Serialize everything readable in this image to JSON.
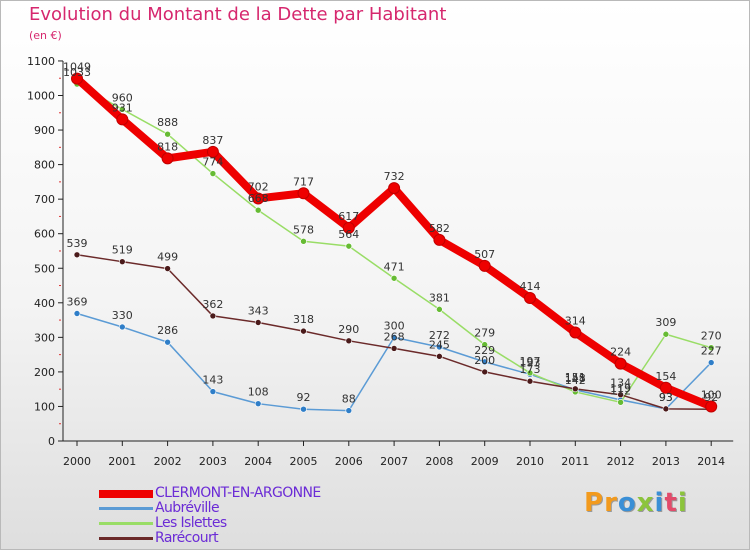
{
  "chart_data": {
    "type": "line",
    "title": "Evolution du Montant de la Dette par Habitant",
    "unit_label": "(en €)",
    "x": [
      "2000",
      "2001",
      "2002",
      "2003",
      "2004",
      "2005",
      "2006",
      "2007",
      "2008",
      "2009",
      "2010",
      "2011",
      "2012",
      "2013",
      "2014"
    ],
    "ylim": [
      0,
      1100
    ],
    "yticks": [
      0,
      100,
      200,
      300,
      400,
      500,
      600,
      700,
      800,
      900,
      1000,
      1100
    ],
    "grid": false,
    "legend_position": "bottom-left",
    "series": [
      {
        "name": "CLERMONT-EN-ARGONNE",
        "color": "#ee0000",
        "dot_color": "#ee0000",
        "values": [
          1049,
          931,
          818,
          837,
          702,
          717,
          617,
          732,
          582,
          507,
          414,
          314,
          224,
          154,
          100
        ]
      },
      {
        "name": "Aubréville",
        "color": "#5b9bd5",
        "dot_color": "#2f7ec8",
        "values": [
          369,
          330,
          286,
          143,
          108,
          92,
          88,
          300,
          272,
          229,
          193,
          148,
          119,
          93,
          227
        ]
      },
      {
        "name": "Les Islettes",
        "color": "#99dd66",
        "dot_color": "#66bb33",
        "values": [
          1033,
          960,
          888,
          774,
          668,
          578,
          564,
          471,
          381,
          279,
          197,
          142,
          112,
          309,
          270
        ]
      },
      {
        "name": "Rarécourt",
        "color": "#6b2a2a",
        "dot_color": "#4a1a1a",
        "values": [
          539,
          519,
          499,
          362,
          343,
          318,
          290,
          268,
          245,
          200,
          173,
          151,
          134,
          93,
          92
        ]
      }
    ]
  },
  "logo": {
    "text": "Proxiti",
    "letters": [
      "P",
      "r",
      "o",
      "x",
      "i",
      "t",
      "i"
    ]
  }
}
